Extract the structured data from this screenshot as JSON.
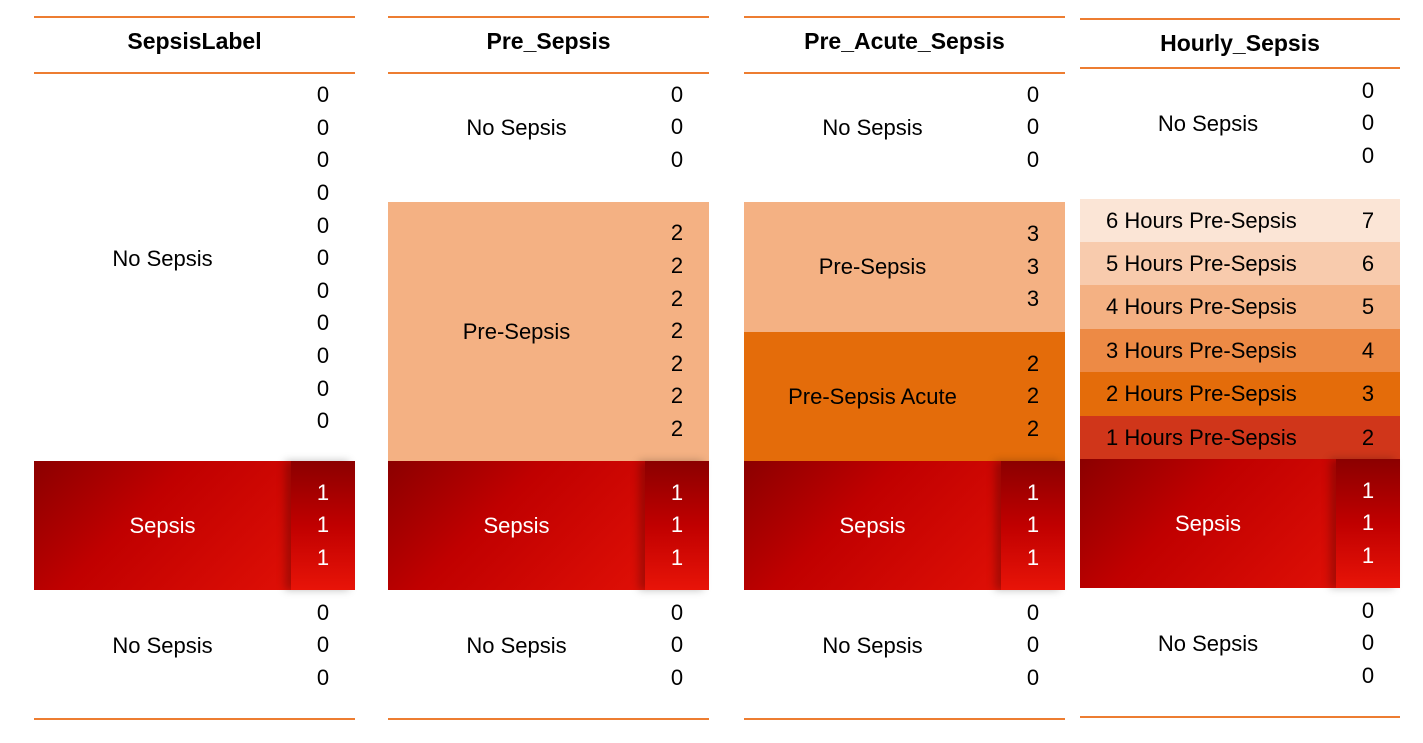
{
  "columns": [
    {
      "header": "SepsisLabel",
      "segments": [
        {
          "label": "No Sepsis",
          "values": [
            "0",
            "0",
            "0",
            "0",
            "0",
            "0",
            "0",
            "0",
            "0",
            "0",
            "0"
          ],
          "kind": "none"
        },
        {
          "label": "Sepsis",
          "values": [
            "1",
            "1",
            "1"
          ],
          "kind": "sepsis"
        },
        {
          "label": "No Sepsis",
          "values": [
            "0",
            "0",
            "0"
          ],
          "kind": "none"
        }
      ]
    },
    {
      "header": "Pre_Sepsis",
      "segments": [
        {
          "label": "No Sepsis",
          "values": [
            "0",
            "0",
            "0"
          ],
          "kind": "none"
        },
        {
          "label": "Pre-Sepsis",
          "values": [
            "2",
            "2",
            "2",
            "2",
            "2",
            "2",
            "2"
          ],
          "kind": "pre"
        },
        {
          "label": "Sepsis",
          "values": [
            "1",
            "1",
            "1"
          ],
          "kind": "sepsis"
        },
        {
          "label": "No Sepsis",
          "values": [
            "0",
            "0",
            "0"
          ],
          "kind": "none"
        }
      ]
    },
    {
      "header": "Pre_Acute_Sepsis",
      "segments": [
        {
          "label": "No Sepsis",
          "values": [
            "0",
            "0",
            "0"
          ],
          "kind": "none"
        },
        {
          "label": "Pre-Sepsis",
          "values": [
            "3",
            "3",
            "3"
          ],
          "kind": "pre"
        },
        {
          "label": "Pre-Sepsis Acute",
          "values": [
            "2",
            "2",
            "2"
          ],
          "kind": "acute"
        },
        {
          "label": "Sepsis",
          "values": [
            "1",
            "1",
            "1"
          ],
          "kind": "sepsis"
        },
        {
          "label": "No Sepsis",
          "values": [
            "0",
            "0",
            "0"
          ],
          "kind": "none"
        }
      ]
    },
    {
      "header": "Hourly_Sepsis",
      "top": {
        "label": "No Sepsis",
        "values": [
          "0",
          "0",
          "0"
        ]
      },
      "hours": [
        {
          "label": "6 Hours Pre-Sepsis",
          "value": "7",
          "color": "#FBE5D6"
        },
        {
          "label": "5 Hours Pre-Sepsis",
          "value": "6",
          "color": "#F8CBAD"
        },
        {
          "label": "4 Hours Pre-Sepsis",
          "value": "5",
          "color": "#F4B183"
        },
        {
          "label": "3 Hours Pre-Sepsis",
          "value": "4",
          "color": "#ED8A45"
        },
        {
          "label": "2 Hours Pre-Sepsis",
          "value": "3",
          "color": "#E46C0A"
        },
        {
          "label": "1 Hours Pre-Sepsis",
          "value": "2",
          "color": "#D0361A"
        }
      ],
      "sepsis": {
        "label": "Sepsis",
        "values": [
          "1",
          "1",
          "1"
        ]
      },
      "bottom": {
        "label": "No Sepsis",
        "values": [
          "0",
          "0",
          "0"
        ]
      }
    }
  ],
  "colors": {
    "rule": "#ED7D31",
    "pre_sepsis": "#F4B183",
    "pre_sepsis_acute": "#E46C0A",
    "sepsis_dark": "#8B0000",
    "sepsis_light": "#E81408"
  }
}
